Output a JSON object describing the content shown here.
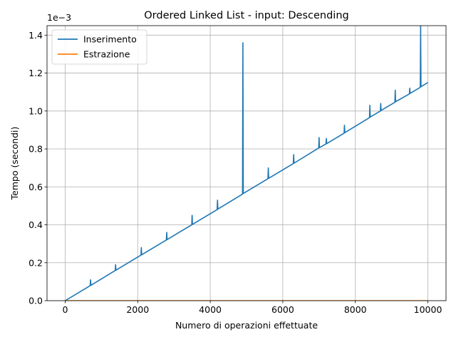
{
  "chart_data": {
    "type": "line",
    "title": "Ordered Linked List - input: Descending",
    "xlabel": "Numero di operazioni effettuate",
    "ylabel": "Tempo (secondi)",
    "y_offset_label": "1e−3",
    "xlim": [
      -500,
      10500
    ],
    "ylim": [
      0,
      1.45
    ],
    "x_ticks": [
      0,
      2000,
      4000,
      6000,
      8000,
      10000
    ],
    "x_tick_labels": [
      "0",
      "2000",
      "4000",
      "6000",
      "8000",
      "10000"
    ],
    "y_ticks": [
      0,
      0.2,
      0.4,
      0.6,
      0.8,
      1.0,
      1.2,
      1.4
    ],
    "y_tick_labels": [
      "0.0",
      "0.2",
      "0.4",
      "0.6",
      "0.8",
      "1.0",
      "1.2",
      "1.4"
    ],
    "grid": true,
    "legend_position": "top-left",
    "series": [
      {
        "name": "Inserimento",
        "color": "#1f77b4",
        "x": [
          0,
          690,
          700,
          710,
          1380,
          1390,
          1400,
          2090,
          2100,
          2110,
          2790,
          2800,
          2810,
          3490,
          3500,
          3510,
          4190,
          4200,
          4210,
          4890,
          4900,
          4910,
          5590,
          5600,
          5610,
          6290,
          6300,
          6310,
          6990,
          7000,
          7010,
          7190,
          7200,
          7210,
          7690,
          7700,
          7710,
          8390,
          8400,
          8410,
          8690,
          8700,
          8710,
          9090,
          9100,
          9110,
          9490,
          9500,
          9510,
          9790,
          9800,
          9810,
          10000
        ],
        "y": [
          0,
          0.079,
          0.11,
          0.081,
          0.159,
          0.19,
          0.161,
          0.24,
          0.28,
          0.242,
          0.32,
          0.36,
          0.322,
          0.4,
          0.45,
          0.402,
          0.48,
          0.53,
          0.483,
          0.562,
          1.36,
          0.565,
          0.643,
          0.7,
          0.645,
          0.723,
          0.77,
          0.725,
          0.805,
          0.86,
          0.807,
          0.826,
          0.855,
          0.828,
          0.883,
          0.925,
          0.886,
          0.965,
          1.03,
          0.968,
          1.0,
          1.04,
          1.003,
          1.046,
          1.11,
          1.049,
          1.09,
          1.12,
          1.093,
          1.125,
          1.45,
          1.128,
          1.15
        ]
      },
      {
        "name": "Estrazione",
        "color": "#ff7f0e",
        "x": [
          0,
          10000
        ],
        "y": [
          5e-07,
          5e-07
        ]
      }
    ]
  }
}
